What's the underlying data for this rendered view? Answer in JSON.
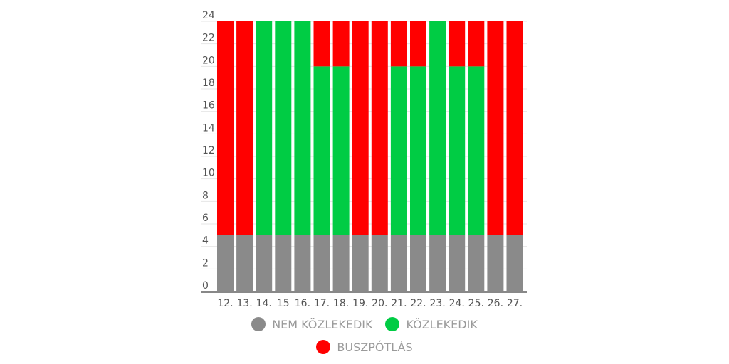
{
  "chart_data": {
    "type": "bar",
    "stacked": true,
    "categories": [
      "12.",
      "13.",
      "14.",
      "15",
      "16.",
      "17.",
      "18.",
      "19.",
      "20.",
      "21.",
      "22.",
      "23.",
      "24.",
      "25.",
      "26.",
      "27."
    ],
    "series": [
      {
        "name": "NEM KÖZLEKEDIK",
        "color": "#8a8a8a",
        "values": [
          5,
          5,
          5,
          5,
          5,
          5,
          5,
          5,
          5,
          5,
          5,
          5,
          5,
          5,
          5,
          5
        ]
      },
      {
        "name": "KÖZLEKEDIK",
        "color": "#00cc44",
        "values": [
          0,
          0,
          19,
          19,
          19,
          15,
          15,
          0,
          0,
          15,
          15,
          19,
          15,
          15,
          0,
          0
        ]
      },
      {
        "name": "BUSZPÓTLÁS",
        "color": "#ff0000",
        "values": [
          19,
          19,
          0,
          0,
          0,
          4,
          4,
          19,
          19,
          4,
          4,
          0,
          4,
          4,
          19,
          19
        ]
      }
    ],
    "yticks": [
      "0",
      "2",
      "4",
      "6",
      "8",
      "10",
      "12",
      "14",
      "16",
      "18",
      "20",
      "22",
      "24"
    ],
    "ylim": [
      0,
      24
    ],
    "grid": true,
    "legend_position": "bottom"
  }
}
